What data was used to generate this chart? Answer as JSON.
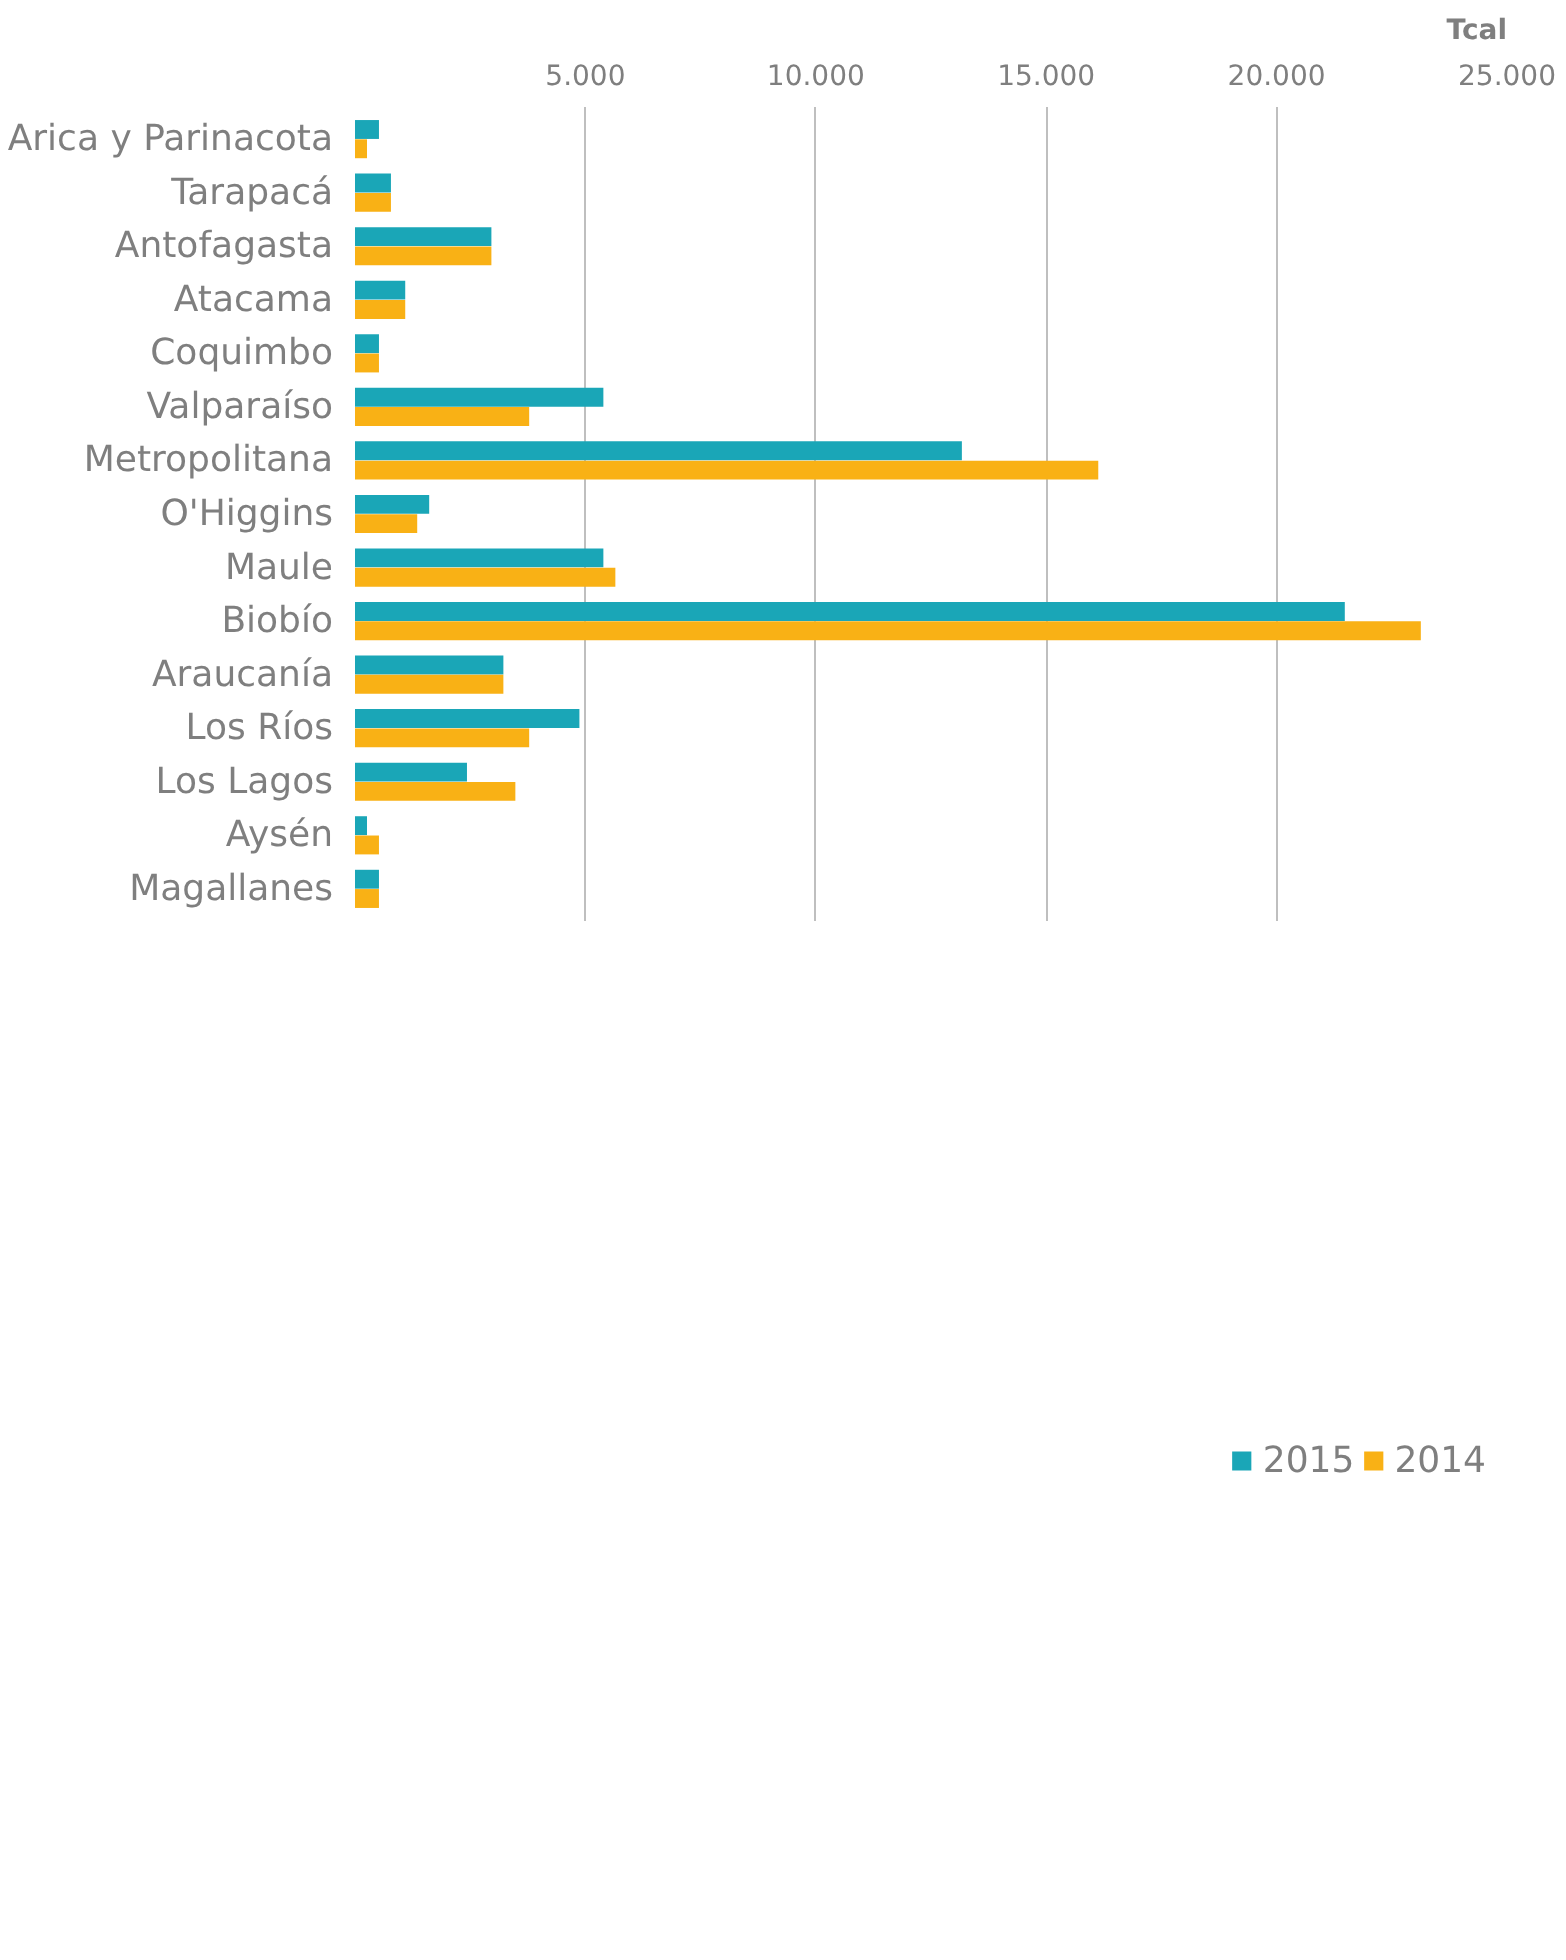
{
  "chart_data": {
    "type": "bar",
    "orientation": "horizontal",
    "xlabel": "Tcal",
    "categories": [
      "Arica y Parinacota",
      "Tarapacá",
      "Antofagasta",
      "Atacama",
      "Coquimbo",
      "Valparaíso",
      "Metropolitana",
      "O'Higgins",
      "Maule",
      "Biobío",
      "Araucanía",
      "Los Ríos",
      "Los Lagos",
      "Aysén",
      "Magallanes"
    ],
    "series": [
      {
        "name": "2015",
        "color": "#1aa6b7",
        "values": [
          520,
          780,
          2960,
          1090,
          520,
          5390,
          13170,
          1610,
          5390,
          21480,
          3220,
          4870,
          2430,
          260,
          520
        ]
      },
      {
        "name": "2014",
        "color": "#f9b115",
        "values": [
          260,
          780,
          2960,
          1090,
          520,
          3780,
          16130,
          1350,
          5650,
          23130,
          3220,
          3780,
          3480,
          520,
          520
        ]
      }
    ],
    "xlim": [
      0,
      25000
    ],
    "xticks": [
      {
        "value": 5000,
        "label": "5.000"
      },
      {
        "value": 10000,
        "label": "10.000"
      },
      {
        "value": 15000,
        "label": "15.000"
      },
      {
        "value": 20000,
        "label": "20.000"
      },
      {
        "value": 25000,
        "label": "25.000"
      }
    ],
    "grid": "x",
    "legend": "bottom"
  }
}
